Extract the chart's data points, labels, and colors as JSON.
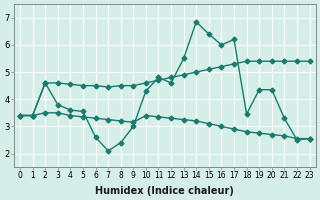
{
  "xlabel": "Humidex (Indice chaleur)",
  "ylabel": "",
  "background_color": "#d6eee8",
  "grid_color": "#ffffff",
  "line_color": "#1a7a6e",
  "xlim": [
    -0.5,
    23.5
  ],
  "ylim": [
    1.5,
    7.5
  ],
  "xticks": [
    0,
    1,
    2,
    3,
    4,
    5,
    6,
    7,
    8,
    9,
    10,
    11,
    12,
    13,
    14,
    15,
    16,
    17,
    18,
    19,
    20,
    21,
    22,
    23
  ],
  "yticks": [
    2,
    3,
    4,
    5,
    6,
    7
  ],
  "line1_x": [
    0,
    1,
    2,
    3,
    4,
    5,
    6,
    7,
    8,
    9,
    10,
    11,
    12,
    13,
    14,
    15,
    16,
    17,
    18,
    19,
    20,
    21,
    22,
    23
  ],
  "line1_y": [
    3.4,
    3.4,
    4.6,
    4.6,
    4.55,
    4.5,
    4.5,
    4.45,
    4.5,
    4.5,
    4.6,
    4.7,
    4.8,
    4.9,
    5.0,
    5.1,
    5.2,
    5.3,
    5.4,
    5.4,
    5.4,
    5.4,
    5.4,
    5.4
  ],
  "line2_x": [
    0,
    1,
    2,
    3,
    4,
    5,
    6,
    7,
    8,
    9,
    10,
    11,
    12,
    13,
    14,
    15,
    16,
    17,
    18,
    19,
    20,
    21,
    22,
    23
  ],
  "line2_y": [
    3.4,
    3.4,
    4.6,
    3.8,
    3.6,
    3.55,
    2.6,
    2.1,
    2.4,
    3.0,
    4.3,
    4.8,
    4.6,
    5.5,
    6.85,
    6.4,
    6.0,
    6.2,
    3.45,
    4.35,
    4.35,
    3.3,
    2.5,
    2.55
  ],
  "line3_x": [
    0,
    1,
    2,
    3,
    4,
    5,
    6,
    7,
    8,
    9,
    10,
    11,
    12,
    13,
    14,
    15,
    16,
    17,
    18,
    19,
    20,
    21,
    22,
    23
  ],
  "line3_y": [
    3.4,
    3.4,
    3.5,
    3.5,
    3.4,
    3.35,
    3.3,
    3.25,
    3.2,
    3.15,
    3.4,
    3.35,
    3.3,
    3.25,
    3.2,
    3.1,
    3.0,
    2.9,
    2.8,
    2.75,
    2.7,
    2.65,
    2.55,
    2.55
  ],
  "marker": "D",
  "marker_size": 2.5,
  "line_width": 1.0
}
